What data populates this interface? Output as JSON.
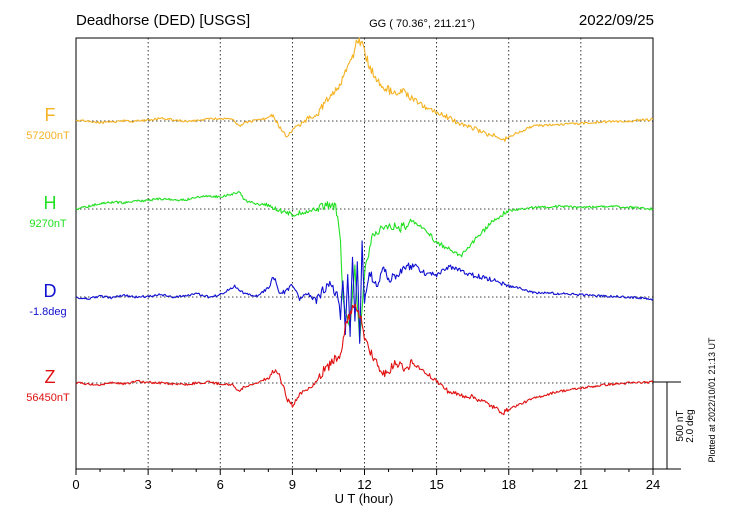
{
  "header": {
    "station": "Deadhorse (DED)  [USGS]",
    "coords": "GG ( 70.36°, 211.21°)",
    "date": "2022/09/25"
  },
  "footer": {
    "xlabel": "U T (hour)",
    "plotted": "Plotted at 2022/10/01 21:13 UT"
  },
  "scale": {
    "nt": "500 nT",
    "deg": "2.0 deg"
  },
  "colors": {
    "F": "#f5b324",
    "H": "#22e022",
    "D": "#1010d0",
    "Z": "#e01010",
    "axis": "#000000"
  },
  "chart_data": {
    "type": "line",
    "xlim": [
      0,
      24
    ],
    "x_ticks": [
      "0",
      "3",
      "6",
      "9",
      "12",
      "15",
      "18",
      "21",
      "24"
    ],
    "series": [
      {
        "name": "F",
        "baseline_label": "57200nT",
        "unit": "nT",
        "baseline": 57200,
        "x": [
          0,
          0.5,
          1,
          1.5,
          2,
          2.5,
          3,
          3.5,
          4,
          4.5,
          5,
          5.5,
          6,
          6.5,
          6.8,
          7,
          7.5,
          8,
          8.2,
          8.5,
          8.8,
          9,
          9.3,
          9.6,
          10,
          10.3,
          10.6,
          11,
          11.2,
          11.5,
          11.7,
          11.9,
          12,
          12.2,
          12.5,
          12.8,
          13,
          13.3,
          13.6,
          14,
          14.5,
          15,
          15.5,
          16,
          16.5,
          17,
          17.5,
          17.8,
          18,
          18.5,
          19,
          20,
          21,
          22,
          23,
          24
        ],
        "y": [
          57205,
          57198,
          57190,
          57195,
          57200,
          57198,
          57205,
          57215,
          57208,
          57200,
          57202,
          57210,
          57215,
          57208,
          57170,
          57190,
          57205,
          57215,
          57230,
          57160,
          57110,
          57150,
          57180,
          57210,
          57240,
          57300,
          57360,
          57400,
          57500,
          57560,
          57680,
          57640,
          57600,
          57520,
          57430,
          57400,
          57380,
          57350,
          57370,
          57330,
          57280,
          57250,
          57220,
          57180,
          57160,
          57130,
          57110,
          57090,
          57110,
          57140,
          57170,
          57180,
          57185,
          57195,
          57200,
          57210
        ]
      },
      {
        "name": "H",
        "baseline_label": "9270nT",
        "unit": "nT",
        "baseline": 9270,
        "x": [
          0,
          0.5,
          1,
          1.5,
          2,
          2.5,
          3,
          3.5,
          4,
          4.5,
          5,
          5.5,
          6,
          6.5,
          6.8,
          7,
          7.5,
          8,
          8.5,
          9,
          9.5,
          10,
          10.5,
          10.8,
          11,
          11.1,
          11.2,
          11.4,
          11.6,
          11.8,
          12,
          12.3,
          12.6,
          13,
          13.5,
          14,
          14.5,
          15,
          15.5,
          16,
          16.5,
          17,
          17.5,
          18,
          19,
          20,
          21,
          22,
          23,
          24
        ],
        "y": [
          9270,
          9285,
          9300,
          9310,
          9305,
          9315,
          9320,
          9330,
          9325,
          9320,
          9335,
          9345,
          9340,
          9355,
          9370,
          9320,
          9300,
          9290,
          9260,
          9240,
          9255,
          9270,
          9290,
          9280,
          9100,
          8750,
          8700,
          8600,
          8950,
          8500,
          8900,
          9100,
          9150,
          9180,
          9160,
          9200,
          9150,
          9080,
          9040,
          9000,
          9080,
          9150,
          9220,
          9260,
          9280,
          9285,
          9280,
          9285,
          9280,
          9270
        ]
      },
      {
        "name": "D",
        "baseline_label": "-1.8deg",
        "unit": "deg",
        "baseline": -1.8,
        "x": [
          0,
          0.5,
          1,
          1.5,
          2,
          2.5,
          3,
          3.5,
          4,
          4.5,
          5,
          5.5,
          6,
          6.3,
          6.6,
          7,
          7.5,
          8,
          8.2,
          8.5,
          9,
          9.3,
          9.6,
          10,
          10.3,
          10.6,
          10.9,
          11,
          11.1,
          11.2,
          11.3,
          11.4,
          11.5,
          11.6,
          11.7,
          11.8,
          11.9,
          12,
          12.2,
          12.5,
          12.8,
          13,
          13.5,
          14,
          14.5,
          15,
          15.5,
          16,
          16.5,
          17,
          17.5,
          18,
          18.5,
          19,
          20,
          21,
          22,
          23,
          24
        ],
        "y": [
          -1.8,
          -1.85,
          -1.78,
          -1.82,
          -1.76,
          -1.8,
          -1.78,
          -1.75,
          -1.8,
          -1.77,
          -1.72,
          -1.8,
          -1.75,
          -1.65,
          -1.55,
          -1.72,
          -1.78,
          -1.6,
          -1.3,
          -1.75,
          -1.55,
          -1.85,
          -1.7,
          -1.9,
          -1.62,
          -1.5,
          -1.8,
          -2.3,
          -1.4,
          -2.6,
          -1.2,
          -2.7,
          -0.8,
          -2.4,
          -1.0,
          -2.8,
          -0.6,
          -1.9,
          -1.2,
          -1.6,
          -1.1,
          -1.4,
          -1.2,
          -1.05,
          -1.25,
          -1.3,
          -1.1,
          -1.2,
          -1.3,
          -1.35,
          -1.45,
          -1.55,
          -1.6,
          -1.7,
          -1.72,
          -1.75,
          -1.78,
          -1.8,
          -1.85
        ]
      },
      {
        "name": "Z",
        "baseline_label": "56450nT",
        "unit": "nT",
        "baseline": 56450,
        "x": [
          0,
          0.5,
          1,
          1.5,
          2,
          2.5,
          3,
          3.5,
          4,
          4.5,
          5,
          5.5,
          6,
          6.5,
          6.8,
          7,
          7.5,
          8,
          8.3,
          8.5,
          8.8,
          9,
          9.3,
          9.6,
          10,
          10.3,
          10.6,
          11,
          11.2,
          11.5,
          11.7,
          11.9,
          12,
          12.2,
          12.5,
          12.8,
          13,
          13.3,
          13.6,
          14,
          14.5,
          15,
          15.5,
          16,
          16.5,
          17,
          17.5,
          17.8,
          18,
          18.5,
          19,
          20,
          21,
          22,
          23,
          24
        ],
        "y": [
          56450,
          56445,
          56440,
          56455,
          56445,
          56460,
          56455,
          56450,
          56445,
          56440,
          56450,
          56455,
          56445,
          56440,
          56400,
          56430,
          56450,
          56480,
          56530,
          56480,
          56350,
          56320,
          56380,
          56420,
          56450,
          56520,
          56560,
          56620,
          56780,
          56880,
          56880,
          56800,
          56720,
          56640,
          56560,
          56500,
          56520,
          56560,
          56540,
          56560,
          56520,
          56460,
          56400,
          56380,
          56370,
          56340,
          56300,
          56280,
          56300,
          56330,
          56360,
          56400,
          56420,
          56440,
          56450,
          56455
        ]
      }
    ]
  }
}
